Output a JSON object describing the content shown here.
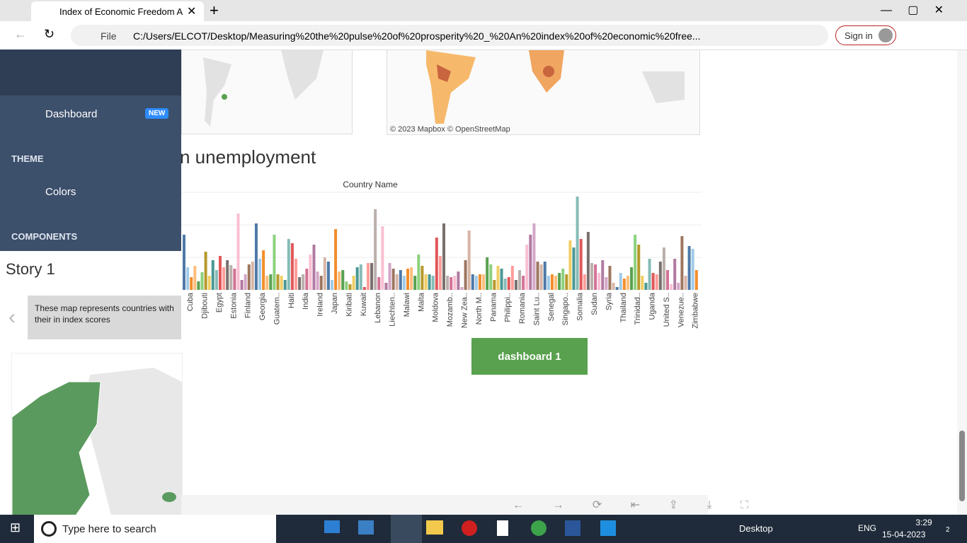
{
  "browser": {
    "tab_title": "Index of Economic Freedom Anal",
    "address_prefix": "File",
    "address": "C:/Users/ELCOT/Desktop/Measuring%20the%20pulse%20of%20prosperity%20_%20An%20index%20of%20economic%20free...",
    "sign_in": "Sign in"
  },
  "sidebar": {
    "dashboard": "Dashboard",
    "badge": "NEW",
    "theme": "THEME",
    "colors": "Colors",
    "components": "COMPONENTS"
  },
  "story": {
    "title": "Story 1",
    "caption": "These map represents countries with their  in index scores"
  },
  "map_credit": "© 2023 Mapbox  © OpenStreetMap",
  "button": "dashboard 1",
  "chart_data": {
    "type": "bar",
    "title": "n unemployment",
    "x_label": "Country Name",
    "categories": [
      "Cuba",
      "Djibouti",
      "Egypt",
      "Estonia",
      "Finland",
      "Georgia",
      "Guatem..",
      "Haiti",
      "India",
      "Ireland",
      "Japan",
      "Kiribati",
      "Kuwait",
      "Lebanon",
      "Liechten..",
      "Malawi",
      "Malta",
      "Moldova",
      "Mozamb..",
      "New Zea..",
      "North M..",
      "Panama",
      "Philippi..",
      "Romania",
      "Saint Lu..",
      "Senegal",
      "Singapo..",
      "Somalia",
      "Sudan",
      "Syria",
      "Thailand",
      "Trinidad..",
      "Uganda",
      "United S..",
      "Venezue..",
      "Zimbabwe"
    ],
    "values": [
      [
        78,
        32,
        18,
        34
      ],
      [
        12,
        25,
        54,
        20
      ],
      [
        42,
        28,
        48,
        32
      ],
      [
        42,
        35,
        30,
        108
      ],
      [
        14,
        22,
        36,
        40
      ],
      [
        94,
        44,
        56,
        20
      ],
      [
        22,
        78,
        22,
        20
      ],
      [
        14,
        72,
        66,
        44
      ],
      [
        18,
        22,
        30,
        50
      ],
      [
        64,
        26,
        20,
        46
      ],
      [
        40,
        14,
        86,
        26
      ],
      [
        28,
        12,
        8,
        20
      ],
      [
        32,
        36,
        4,
        38
      ],
      [
        38,
        114,
        18,
        90
      ],
      [
        10,
        38,
        30,
        22
      ],
      [
        28,
        20,
        30,
        32
      ],
      [
        20,
        50,
        34,
        22
      ],
      [
        22,
        20,
        74,
        48
      ],
      [
        94,
        20,
        18,
        20
      ],
      [
        26,
        4,
        42,
        84
      ],
      [
        22,
        20,
        22,
        22
      ],
      [
        46,
        36,
        14,
        34
      ],
      [
        30,
        16,
        18,
        34
      ],
      [
        14,
        28,
        20,
        64
      ],
      [
        78,
        94,
        40,
        36
      ],
      [
        40,
        20,
        22,
        20
      ],
      [
        24,
        30,
        22,
        70
      ],
      [
        60,
        132,
        72,
        22
      ],
      [
        82,
        38,
        36,
        24
      ],
      [
        42,
        18,
        34,
        10
      ],
      [
        4,
        24,
        16,
        20
      ],
      [
        32,
        78,
        64,
        20
      ],
      [
        10,
        44,
        24,
        22
      ],
      [
        40,
        60,
        28,
        8
      ],
      [
        44,
        10,
        76,
        20
      ],
      [
        62,
        58,
        28,
        0
      ]
    ],
    "colors": [
      "#4e79a7",
      "#a0cbe8",
      "#f28e2b",
      "#ffbe7d",
      "#59a14f",
      "#8cd17d",
      "#b6992d",
      "#f1ce63",
      "#499894",
      "#86bcb6",
      "#e15759",
      "#ff9d9a",
      "#79706e",
      "#bab0ac",
      "#d37295",
      "#fabfd2",
      "#b07aa1",
      "#d4a6c8",
      "#9d7660",
      "#d7b5a6"
    ]
  },
  "taskbar": {
    "search": "Type here to search",
    "desktop": "Desktop",
    "lang": "ENG",
    "time": "3:29",
    "date": "15-04-2023",
    "notifications": "2"
  }
}
